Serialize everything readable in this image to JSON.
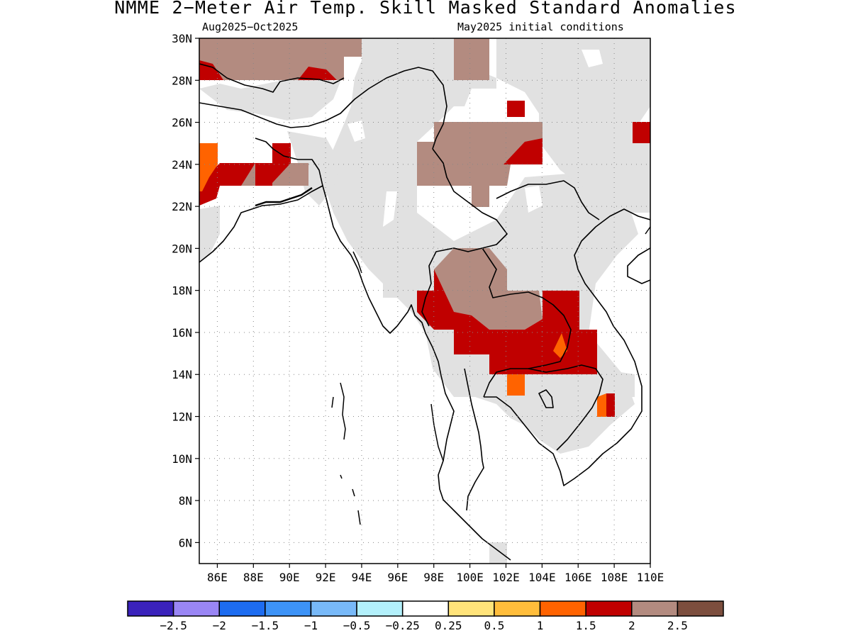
{
  "title": "NMME 2−Meter Air Temp. Skill Masked Standard Anomalies",
  "subtitle_left": "Aug2025−Oct2025",
  "subtitle_right": "May2025 initial conditions",
  "map": {
    "lat_range": [
      5,
      30
    ],
    "lon_range": [
      85,
      110
    ],
    "lat_ticks": [
      {
        "value": 30,
        "label": "30N"
      },
      {
        "value": 28,
        "label": "28N"
      },
      {
        "value": 26,
        "label": "26N"
      },
      {
        "value": 24,
        "label": "24N"
      },
      {
        "value": 22,
        "label": "22N"
      },
      {
        "value": 20,
        "label": "20N"
      },
      {
        "value": 18,
        "label": "18N"
      },
      {
        "value": 16,
        "label": "16N"
      },
      {
        "value": 14,
        "label": "14N"
      },
      {
        "value": 12,
        "label": "12N"
      },
      {
        "value": 10,
        "label": "10N"
      },
      {
        "value": 8,
        "label": "8N"
      },
      {
        "value": 6,
        "label": "6N"
      }
    ],
    "lon_ticks": [
      {
        "value": 86,
        "label": "86E"
      },
      {
        "value": 88,
        "label": "88E"
      },
      {
        "value": 90,
        "label": "90E"
      },
      {
        "value": 92,
        "label": "92E"
      },
      {
        "value": 94,
        "label": "94E"
      },
      {
        "value": 96,
        "label": "96E"
      },
      {
        "value": 98,
        "label": "98E"
      },
      {
        "value": 100,
        "label": "100E"
      },
      {
        "value": 102,
        "label": "102E"
      },
      {
        "value": 104,
        "label": "104E"
      },
      {
        "value": 106,
        "label": "106E"
      },
      {
        "value": 108,
        "label": "108E"
      },
      {
        "value": 110,
        "label": "110E"
      }
    ],
    "grid": true,
    "fill_colors": {
      "masked": "#e1e1e1",
      "band_1_5_to_2": "#c00000",
      "band_2_to_2_5": "#b38b80",
      "band_1_to_1_5": "#ff6300"
    }
  },
  "colorbar": {
    "colors": [
      "#3a22bb",
      "#9a86f5",
      "#1d6cf0",
      "#3d93f7",
      "#78b9f8",
      "#b3f0fb",
      "#ffffff",
      "#ffe37a",
      "#ffbd3b",
      "#ff6300",
      "#c00000",
      "#b38b80",
      "#7c4e3e"
    ],
    "labels": [
      "−2.5",
      "−2",
      "−1.5",
      "−1",
      "−0.5",
      "−0.25",
      "0.25",
      "0.5",
      "1",
      "1.5",
      "2",
      "2.5"
    ]
  }
}
